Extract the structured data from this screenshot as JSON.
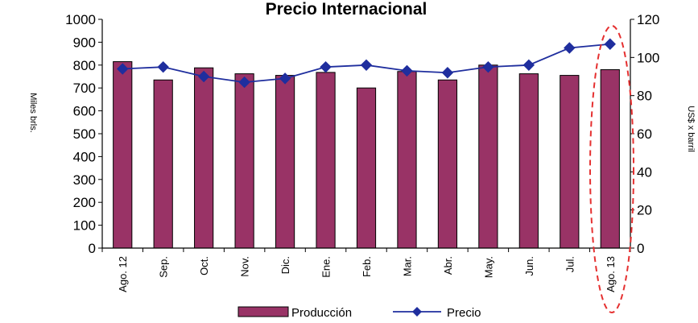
{
  "chart_data": {
    "type": "bar",
    "title": "Precio Internacional",
    "categories": [
      "Ago. 12",
      "Sep.",
      "Oct.",
      "Nov.",
      "Dic.",
      "Ene.",
      "Feb.",
      "Mar.",
      "Abr.",
      "May.",
      "Jun.",
      "Jul.",
      "Ago. 13"
    ],
    "series": [
      {
        "name": "Producción",
        "type": "bar",
        "axis": "left",
        "values": [
          815,
          735,
          788,
          762,
          755,
          768,
          700,
          772,
          735,
          800,
          762,
          755,
          780
        ]
      },
      {
        "name": "Precio",
        "type": "line",
        "axis": "right",
        "values": [
          94,
          95,
          90,
          87,
          89,
          95,
          96,
          93,
          92,
          95,
          96,
          105,
          107
        ]
      }
    ],
    "ylabel": "Miles brls.",
    "ylabel_right": "US$ x barril",
    "ylim": [
      0,
      1000
    ],
    "ylim_right": [
      0,
      120
    ],
    "yticks": [
      "0",
      "100",
      "200",
      "300",
      "400",
      "500",
      "600",
      "700",
      "800",
      "900",
      "1000"
    ],
    "yticks_right": [
      "0",
      "20",
      "40",
      "60",
      "80",
      "100",
      "120"
    ],
    "legend_position": "bottom",
    "grid": false,
    "annotation": "dashed red ellipse highlighting Ago. 13",
    "colors": {
      "bar": "#993366",
      "line": "#1F2E9E",
      "annotation": "#E53030"
    }
  }
}
